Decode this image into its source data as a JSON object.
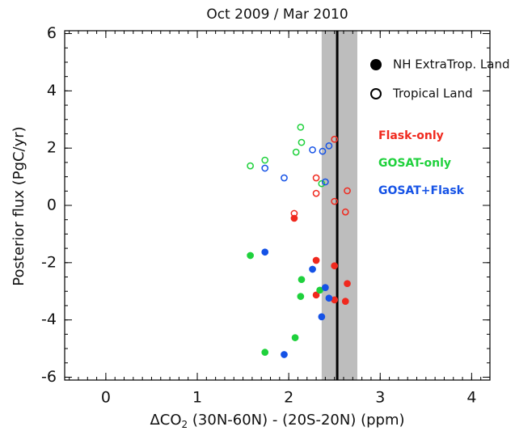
{
  "chart_data": {
    "type": "scatter",
    "title": "Oct 2009 / Mar 2010",
    "xlabel": {
      "main": "ΔCO",
      "sub": "2",
      "rest": " (30N-60N) - (20S-20N) (ppm)"
    },
    "ylabel": "Posterior flux (PgC/yr)",
    "xlim": [
      -0.45,
      4.2
    ],
    "ylim": [
      -6.1,
      6.1
    ],
    "xticks": [
      0,
      1,
      2,
      3,
      4
    ],
    "yticks": [
      -6,
      -4,
      -2,
      0,
      2,
      4,
      6
    ],
    "x_minor_step": 0.1,
    "y_minor_step": 0.5,
    "shaded_x": [
      2.36,
      2.75
    ],
    "shade_color": "#bdbdbd",
    "vline_x": 2.53,
    "marker_legend": [
      {
        "label": "NH ExtraTrop. Land",
        "filled": true
      },
      {
        "label": "Tropical Land",
        "filled": false
      }
    ],
    "series": [
      {
        "name": "Flask-only",
        "color": "#f0291e",
        "tropical": {
          "x": [
            2.5,
            2.3,
            2.3,
            2.5,
            2.64,
            2.62,
            2.06
          ],
          "y": [
            2.31,
            0.96,
            0.42,
            0.14,
            0.51,
            -0.23,
            -0.28
          ]
        },
        "extratropical": {
          "x": [
            2.06,
            2.3,
            2.5,
            2.64,
            2.3,
            2.5,
            2.62
          ],
          "y": [
            -0.45,
            -1.92,
            -2.11,
            -2.73,
            -3.13,
            -3.3,
            -3.35
          ]
        }
      },
      {
        "name": "GOSAT-only",
        "color": "#1fd13c",
        "tropical": {
          "x": [
            2.13,
            2.14,
            2.08,
            1.58,
            1.74,
            2.36
          ],
          "y": [
            2.73,
            2.2,
            1.86,
            1.38,
            1.58,
            0.76
          ]
        },
        "extratropical": {
          "x": [
            1.58,
            2.14,
            2.13,
            2.34,
            2.07,
            1.74
          ],
          "y": [
            -1.75,
            -2.59,
            -3.18,
            -2.96,
            -4.62,
            -5.13
          ]
        }
      },
      {
        "name": "GOSAT+Flask",
        "color": "#1552e6",
        "tropical": {
          "x": [
            2.26,
            2.37,
            2.44,
            1.74,
            1.95,
            2.4
          ],
          "y": [
            1.94,
            1.89,
            2.08,
            1.3,
            0.96,
            0.82
          ]
        },
        "extratropical": {
          "x": [
            1.74,
            2.26,
            2.4,
            2.44,
            2.36,
            1.95
          ],
          "y": [
            -1.63,
            -2.23,
            -2.87,
            -3.24,
            -3.89,
            -5.21
          ]
        }
      }
    ]
  }
}
